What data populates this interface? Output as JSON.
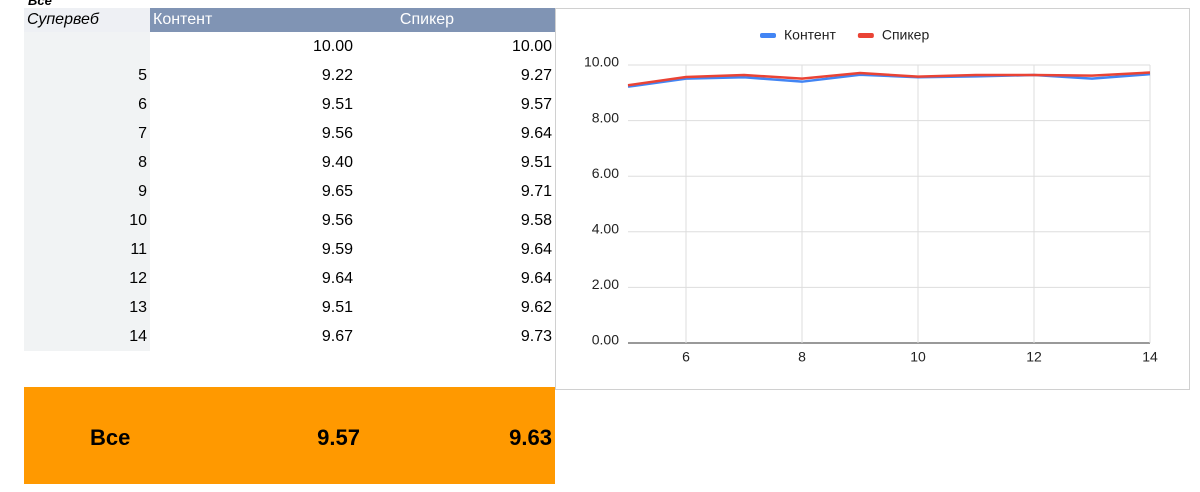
{
  "title": "Все",
  "table": {
    "header": [
      "Супервеб",
      "Контент",
      "Спикер"
    ],
    "rows": [
      [
        null,
        "10.00",
        "10.00"
      ],
      [
        "5",
        "9.22",
        "9.27"
      ],
      [
        "6",
        "9.51",
        "9.57"
      ],
      [
        "7",
        "9.56",
        "9.64"
      ],
      [
        "8",
        "9.40",
        "9.51"
      ],
      [
        "9",
        "9.65",
        "9.71"
      ],
      [
        "10",
        "9.56",
        "9.58"
      ],
      [
        "11",
        "9.59",
        "9.64"
      ],
      [
        "12",
        "9.64",
        "9.64"
      ],
      [
        "13",
        "9.51",
        "9.62"
      ],
      [
        "14",
        "9.67",
        "9.73"
      ]
    ],
    "total": [
      "Все",
      "9.57",
      "9.63"
    ]
  },
  "chart_data": {
    "type": "line",
    "x": [
      5,
      6,
      7,
      8,
      9,
      10,
      11,
      12,
      13,
      14
    ],
    "series": [
      {
        "name": "Контент",
        "color": "#4285f4",
        "values": [
          9.22,
          9.51,
          9.56,
          9.4,
          9.65,
          9.56,
          9.59,
          9.64,
          9.51,
          9.67
        ]
      },
      {
        "name": "Спикер",
        "color": "#ea4335",
        "values": [
          9.27,
          9.57,
          9.64,
          9.51,
          9.71,
          9.58,
          9.64,
          9.64,
          9.62,
          9.73
        ]
      }
    ],
    "xlim": [
      5,
      14
    ],
    "xticks": [
      6,
      8,
      10,
      12,
      14
    ],
    "ylim": [
      0,
      10
    ],
    "yticks": [
      {
        "value": 0,
        "label": "0.00"
      },
      {
        "value": 2,
        "label": "2.00"
      },
      {
        "value": 4,
        "label": "4.00"
      },
      {
        "value": 6,
        "label": "6.00"
      },
      {
        "value": 8,
        "label": "8.00"
      },
      {
        "value": 10,
        "label": "10.00"
      }
    ],
    "grid": true,
    "legend": "top"
  }
}
